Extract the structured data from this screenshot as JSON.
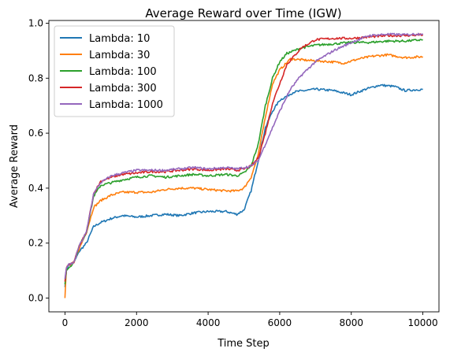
{
  "chart_data": {
    "type": "line",
    "title": "Average Reward over Time (IGW)",
    "xlabel": "Time Step",
    "ylabel": "Average Reward",
    "xlim": [
      -450,
      10450
    ],
    "ylim": [
      -0.05,
      1.01
    ],
    "xticks": [
      0,
      2000,
      4000,
      6000,
      8000,
      10000
    ],
    "yticks": [
      0.0,
      0.2,
      0.4,
      0.6,
      0.8,
      1.0
    ],
    "xtick_labels": [
      "0",
      "2000",
      "4000",
      "6000",
      "8000",
      "10000"
    ],
    "ytick_labels": [
      "0.0",
      "0.2",
      "0.4",
      "0.6",
      "0.8",
      "1.0"
    ],
    "grid": false,
    "legend_position": "top-left",
    "series": [
      {
        "name": "Lambda: 10",
        "color": "#1f77b4",
        "points": [
          [
            0,
            0.04
          ],
          [
            40,
            0.1
          ],
          [
            100,
            0.12
          ],
          [
            250,
            0.13
          ],
          [
            400,
            0.17
          ],
          [
            600,
            0.2
          ],
          [
            800,
            0.26
          ],
          [
            1000,
            0.275
          ],
          [
            1300,
            0.29
          ],
          [
            1600,
            0.3
          ],
          [
            2000,
            0.295
          ],
          [
            2400,
            0.3
          ],
          [
            2800,
            0.305
          ],
          [
            3200,
            0.3
          ],
          [
            3600,
            0.31
          ],
          [
            4000,
            0.315
          ],
          [
            4500,
            0.315
          ],
          [
            4800,
            0.305
          ],
          [
            5000,
            0.32
          ],
          [
            5200,
            0.39
          ],
          [
            5400,
            0.5
          ],
          [
            5600,
            0.62
          ],
          [
            5800,
            0.68
          ],
          [
            6000,
            0.72
          ],
          [
            6400,
            0.75
          ],
          [
            7000,
            0.76
          ],
          [
            7500,
            0.755
          ],
          [
            8000,
            0.74
          ],
          [
            8400,
            0.76
          ],
          [
            8800,
            0.775
          ],
          [
            9200,
            0.77
          ],
          [
            9500,
            0.755
          ],
          [
            10000,
            0.76
          ]
        ]
      },
      {
        "name": "Lambda: 30",
        "color": "#ff7f0e",
        "points": [
          [
            0,
            0.0
          ],
          [
            40,
            0.11
          ],
          [
            100,
            0.12
          ],
          [
            250,
            0.13
          ],
          [
            400,
            0.18
          ],
          [
            600,
            0.24
          ],
          [
            800,
            0.33
          ],
          [
            1000,
            0.355
          ],
          [
            1300,
            0.375
          ],
          [
            1600,
            0.385
          ],
          [
            2000,
            0.385
          ],
          [
            2400,
            0.385
          ],
          [
            2800,
            0.395
          ],
          [
            3200,
            0.4
          ],
          [
            3600,
            0.4
          ],
          [
            4000,
            0.395
          ],
          [
            4500,
            0.39
          ],
          [
            4800,
            0.39
          ],
          [
            5000,
            0.4
          ],
          [
            5200,
            0.44
          ],
          [
            5400,
            0.52
          ],
          [
            5600,
            0.66
          ],
          [
            5800,
            0.78
          ],
          [
            6000,
            0.83
          ],
          [
            6300,
            0.87
          ],
          [
            6800,
            0.865
          ],
          [
            7400,
            0.86
          ],
          [
            7800,
            0.855
          ],
          [
            8200,
            0.87
          ],
          [
            8600,
            0.88
          ],
          [
            9000,
            0.885
          ],
          [
            9500,
            0.875
          ],
          [
            10000,
            0.878
          ]
        ]
      },
      {
        "name": "Lambda: 100",
        "color": "#2ca02c",
        "points": [
          [
            0,
            0.05
          ],
          [
            40,
            0.1
          ],
          [
            100,
            0.11
          ],
          [
            250,
            0.13
          ],
          [
            400,
            0.19
          ],
          [
            600,
            0.24
          ],
          [
            800,
            0.37
          ],
          [
            1000,
            0.41
          ],
          [
            1300,
            0.42
          ],
          [
            1600,
            0.43
          ],
          [
            2000,
            0.44
          ],
          [
            2400,
            0.445
          ],
          [
            2800,
            0.44
          ],
          [
            3200,
            0.445
          ],
          [
            3600,
            0.45
          ],
          [
            4000,
            0.445
          ],
          [
            4500,
            0.45
          ],
          [
            4800,
            0.445
          ],
          [
            5000,
            0.455
          ],
          [
            5200,
            0.48
          ],
          [
            5400,
            0.56
          ],
          [
            5600,
            0.7
          ],
          [
            5800,
            0.8
          ],
          [
            6000,
            0.86
          ],
          [
            6200,
            0.89
          ],
          [
            6600,
            0.91
          ],
          [
            7000,
            0.92
          ],
          [
            7500,
            0.925
          ],
          [
            8000,
            0.93
          ],
          [
            8500,
            0.93
          ],
          [
            9000,
            0.935
          ],
          [
            9500,
            0.935
          ],
          [
            10000,
            0.94
          ]
        ]
      },
      {
        "name": "Lambda: 300",
        "color": "#d62728",
        "points": [
          [
            0,
            0.06
          ],
          [
            40,
            0.11
          ],
          [
            100,
            0.12
          ],
          [
            250,
            0.13
          ],
          [
            400,
            0.19
          ],
          [
            600,
            0.24
          ],
          [
            800,
            0.38
          ],
          [
            1000,
            0.425
          ],
          [
            1300,
            0.44
          ],
          [
            1600,
            0.45
          ],
          [
            2000,
            0.455
          ],
          [
            2400,
            0.46
          ],
          [
            2800,
            0.46
          ],
          [
            3200,
            0.465
          ],
          [
            3600,
            0.47
          ],
          [
            4000,
            0.465
          ],
          [
            4500,
            0.47
          ],
          [
            4800,
            0.465
          ],
          [
            5000,
            0.47
          ],
          [
            5200,
            0.48
          ],
          [
            5400,
            0.51
          ],
          [
            5600,
            0.6
          ],
          [
            5800,
            0.71
          ],
          [
            6000,
            0.78
          ],
          [
            6200,
            0.85
          ],
          [
            6600,
            0.91
          ],
          [
            7000,
            0.94
          ],
          [
            7500,
            0.945
          ],
          [
            8000,
            0.945
          ],
          [
            8500,
            0.95
          ],
          [
            9000,
            0.955
          ],
          [
            9500,
            0.955
          ],
          [
            10000,
            0.958
          ]
        ]
      },
      {
        "name": "Lambda: 1000",
        "color": "#9467bd",
        "points": [
          [
            0,
            0.07
          ],
          [
            40,
            0.11
          ],
          [
            100,
            0.12
          ],
          [
            250,
            0.13
          ],
          [
            400,
            0.19
          ],
          [
            600,
            0.24
          ],
          [
            800,
            0.38
          ],
          [
            1000,
            0.42
          ],
          [
            1300,
            0.445
          ],
          [
            1600,
            0.455
          ],
          [
            2000,
            0.465
          ],
          [
            2400,
            0.465
          ],
          [
            2800,
            0.465
          ],
          [
            3200,
            0.47
          ],
          [
            3600,
            0.475
          ],
          [
            4000,
            0.47
          ],
          [
            4500,
            0.475
          ],
          [
            4800,
            0.47
          ],
          [
            5000,
            0.475
          ],
          [
            5200,
            0.48
          ],
          [
            5400,
            0.5
          ],
          [
            5600,
            0.56
          ],
          [
            5800,
            0.62
          ],
          [
            6000,
            0.68
          ],
          [
            6300,
            0.76
          ],
          [
            6600,
            0.81
          ],
          [
            7000,
            0.86
          ],
          [
            7500,
            0.9
          ],
          [
            8000,
            0.93
          ],
          [
            8500,
            0.955
          ],
          [
            9000,
            0.96
          ],
          [
            9500,
            0.958
          ],
          [
            10000,
            0.962
          ]
        ]
      }
    ]
  }
}
